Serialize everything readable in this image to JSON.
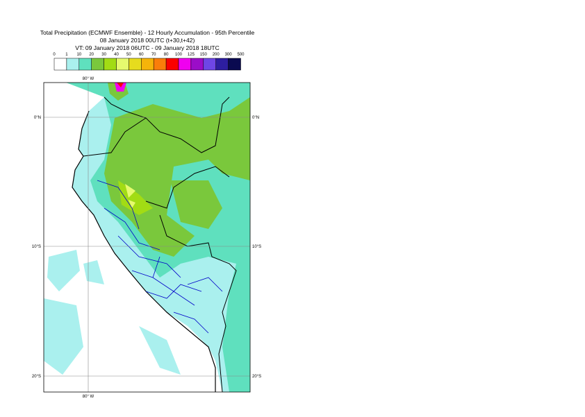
{
  "title": {
    "lines": [
      "Total Precipitation (ECMWF Ensemble) - 12 Hourly Accumulation - 95th Percentile",
      "08 January 2018 00UTC (t+30,t+42)",
      "VT: 09 January 2018 06UTC - 09 January 2018 18UTC"
    ]
  },
  "legend": {
    "levels": [
      0,
      1,
      10,
      20,
      30,
      40,
      50,
      60,
      70,
      80,
      100,
      125,
      150,
      200,
      300,
      500
    ],
    "colors": [
      "#ffffff",
      "#aaf0ee",
      "#5fe0be",
      "#7ac83c",
      "#a2dc14",
      "#e6fa6e",
      "#e6dc1e",
      "#f5b40a",
      "#fa7d0a",
      "#fa0000",
      "#f000f0",
      "#9b0dc8",
      "#6e46e6",
      "#2d1ea0",
      "#0a0a50"
    ]
  },
  "axes": {
    "lon_labels": [
      "80° W"
    ],
    "lat_labels": [
      "0°N",
      "10°S",
      "20°S"
    ]
  }
}
